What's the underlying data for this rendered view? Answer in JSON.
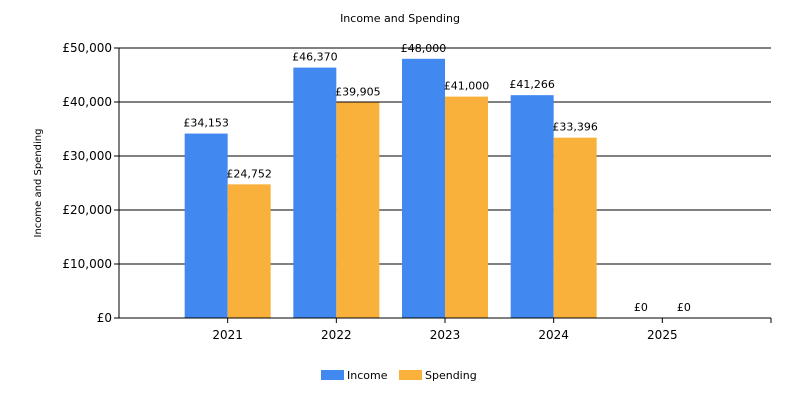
{
  "chart_data": {
    "type": "bar",
    "title": "Income and Spending",
    "xlabel": "",
    "ylabel": "Income and Spending",
    "categories": [
      "2021",
      "2022",
      "2023",
      "2024",
      "2025"
    ],
    "series": [
      {
        "name": "Income",
        "color": "#4189F0",
        "values": [
          34153,
          46370,
          48000,
          41266,
          0
        ],
        "labels": [
          "£34,153",
          "£46,370",
          "£48,000",
          "£41,266",
          "£0"
        ]
      },
      {
        "name": "Spending",
        "color": "#F9B13C",
        "values": [
          24752,
          39905,
          41000,
          33396,
          0
        ],
        "labels": [
          "£24,752",
          "£39,905",
          "£41,000",
          "£33,396",
          "£0"
        ]
      }
    ],
    "ylim": [
      0,
      50000
    ],
    "yticks": [
      0,
      10000,
      20000,
      30000,
      40000,
      50000
    ],
    "ytick_labels": [
      "£0",
      "£10,000",
      "£20,000",
      "£30,000",
      "£40,000",
      "£50,000"
    ],
    "grid": true,
    "legend_position": "bottom-center"
  }
}
